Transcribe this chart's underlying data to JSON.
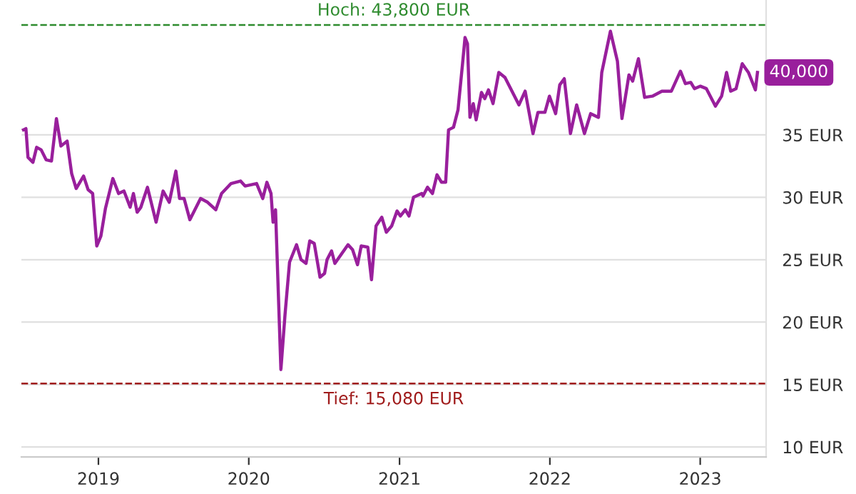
{
  "chart_data": {
    "type": "line",
    "x": [
      "2018-07-03",
      "2018-07-09",
      "2018-07-14",
      "2018-07-26",
      "2018-08-04",
      "2018-08-15",
      "2018-08-27",
      "2018-09-09",
      "2018-09-21",
      "2018-10-02",
      "2018-10-17",
      "2018-10-28",
      "2018-11-08",
      "2018-11-26",
      "2018-12-07",
      "2018-12-18",
      "2018-12-28",
      "2019-01-07",
      "2019-01-18",
      "2019-02-05",
      "2019-02-19",
      "2019-03-04",
      "2019-03-19",
      "2019-03-27",
      "2019-04-05",
      "2019-04-14",
      "2019-04-30",
      "2019-05-21",
      "2019-06-07",
      "2019-06-22",
      "2019-07-08",
      "2019-07-17",
      "2019-07-28",
      "2019-08-11",
      "2019-09-06",
      "2019-09-23",
      "2019-10-13",
      "2019-10-27",
      "2019-11-19",
      "2019-12-12",
      "2019-12-23",
      "2020-01-20",
      "2020-02-04",
      "2020-02-14",
      "2020-02-24",
      "2020-02-29",
      "2020-03-06",
      "2020-03-19",
      "2020-03-29",
      "2020-04-09",
      "2020-04-26",
      "2020-05-07",
      "2020-05-19",
      "2020-05-28",
      "2020-06-08",
      "2020-06-22",
      "2020-07-03",
      "2020-07-09",
      "2020-07-20",
      "2020-07-28",
      "2020-08-29",
      "2020-09-09",
      "2020-09-21",
      "2020-09-30",
      "2020-10-16",
      "2020-10-25",
      "2020-11-05",
      "2020-11-19",
      "2020-11-30",
      "2020-12-13",
      "2020-12-26",
      "2021-01-03",
      "2021-01-15",
      "2021-01-24",
      "2021-02-04",
      "2021-02-24",
      "2021-02-27",
      "2021-03-10",
      "2021-03-22",
      "2021-04-02",
      "2021-04-13",
      "2021-04-23",
      "2021-04-30",
      "2021-05-12",
      "2021-05-23",
      "2021-06-03",
      "2021-06-09",
      "2021-06-15",
      "2021-06-21",
      "2021-06-29",
      "2021-07-06",
      "2021-07-19",
      "2021-07-27",
      "2021-08-05",
      "2021-08-16",
      "2021-08-30",
      "2021-09-14",
      "2021-10-01",
      "2021-10-18",
      "2021-11-02",
      "2021-11-21",
      "2021-12-03",
      "2021-12-20",
      "2021-12-31",
      "2022-01-15",
      "2022-01-25",
      "2022-02-05",
      "2022-02-20",
      "2022-03-07",
      "2022-03-26",
      "2022-04-10",
      "2022-04-29",
      "2022-05-07",
      "2022-05-28",
      "2022-06-14",
      "2022-06-25",
      "2022-07-12",
      "2022-07-21",
      "2022-08-04",
      "2022-08-19",
      "2022-09-07",
      "2022-09-30",
      "2022-10-23",
      "2022-11-14",
      "2022-11-26",
      "2022-12-09",
      "2022-12-18",
      "2023-01-01",
      "2023-01-16",
      "2023-02-07",
      "2023-02-22",
      "2023-03-06",
      "2023-03-16",
      "2023-03-29",
      "2023-04-13",
      "2023-04-28",
      "2023-05-15",
      "2023-05-20"
    ],
    "series": [
      {
        "color": "#991f9c",
        "values": [
          35.4,
          35.5,
          33.2,
          32.8,
          34.0,
          33.8,
          33.0,
          32.9,
          36.3,
          34.1,
          34.5,
          31.9,
          30.7,
          31.7,
          30.6,
          30.3,
          26.1,
          26.9,
          29.1,
          31.5,
          30.3,
          30.5,
          29.2,
          30.3,
          28.8,
          29.2,
          30.8,
          28.0,
          30.5,
          29.6,
          32.1,
          29.9,
          29.9,
          28.2,
          29.9,
          29.6,
          29.0,
          30.3,
          31.1,
          31.3,
          30.9,
          31.1,
          29.9,
          31.2,
          30.3,
          28.0,
          29.0,
          16.2,
          20.6,
          24.8,
          26.2,
          25.0,
          24.7,
          26.5,
          26.3,
          23.6,
          23.9,
          25.0,
          25.7,
          24.7,
          26.2,
          25.8,
          24.6,
          26.1,
          26.0,
          23.4,
          27.7,
          28.4,
          27.2,
          27.7,
          28.9,
          28.5,
          29.0,
          28.5,
          30.0,
          30.3,
          30.1,
          30.8,
          30.3,
          31.8,
          31.2,
          31.2,
          35.4,
          35.6,
          37.0,
          40.7,
          42.8,
          42.3,
          36.4,
          37.5,
          36.2,
          38.4,
          37.9,
          38.6,
          37.5,
          40.0,
          39.6,
          38.5,
          37.4,
          38.5,
          35.1,
          36.8,
          36.8,
          38.1,
          36.7,
          39.0,
          39.5,
          35.1,
          37.4,
          35.1,
          36.7,
          36.4,
          40.0,
          43.3,
          40.9,
          36.3,
          39.8,
          39.3,
          41.1,
          38.0,
          38.1,
          38.5,
          38.5,
          40.1,
          39.1,
          39.2,
          38.7,
          38.9,
          38.7,
          37.3,
          38.1,
          40.0,
          38.5,
          38.7,
          40.7,
          40.0,
          38.6,
          40.0
        ]
      }
    ],
    "xlim": [
      "2018-06-28",
      "2023-06-10"
    ],
    "xticks": [
      {
        "value": "2019-01-01",
        "label": "2019"
      },
      {
        "value": "2020-01-01",
        "label": "2020"
      },
      {
        "value": "2021-01-01",
        "label": "2021"
      },
      {
        "value": "2022-01-01",
        "label": "2022"
      },
      {
        "value": "2023-01-01",
        "label": "2023"
      }
    ],
    "ylim": [
      9.2,
      45.8
    ],
    "yticks": [
      {
        "value": 10,
        "label": "10 EUR"
      },
      {
        "value": 15,
        "label": "15 EUR"
      },
      {
        "value": 20,
        "label": "20 EUR"
      },
      {
        "value": 25,
        "label": "25 EUR"
      },
      {
        "value": 30,
        "label": "30 EUR"
      },
      {
        "value": 35,
        "label": "35 EUR"
      }
    ],
    "grid": "y",
    "legend": false,
    "marker": "none",
    "line_style": "solid",
    "ref_lines": [
      {
        "axis": "y",
        "value": 43.8,
        "label": "Hoch: 43,800 EUR",
        "color": "#2e8b2e",
        "line_style": "dashed"
      },
      {
        "axis": "y",
        "value": 15.08,
        "label": "Tief: 15,080 EUR",
        "color": "#a01c1c",
        "line_style": "dashed"
      }
    ],
    "annotations": [
      {
        "text": "40,000",
        "x": "2023-05-20",
        "y": 40.0
      }
    ]
  }
}
